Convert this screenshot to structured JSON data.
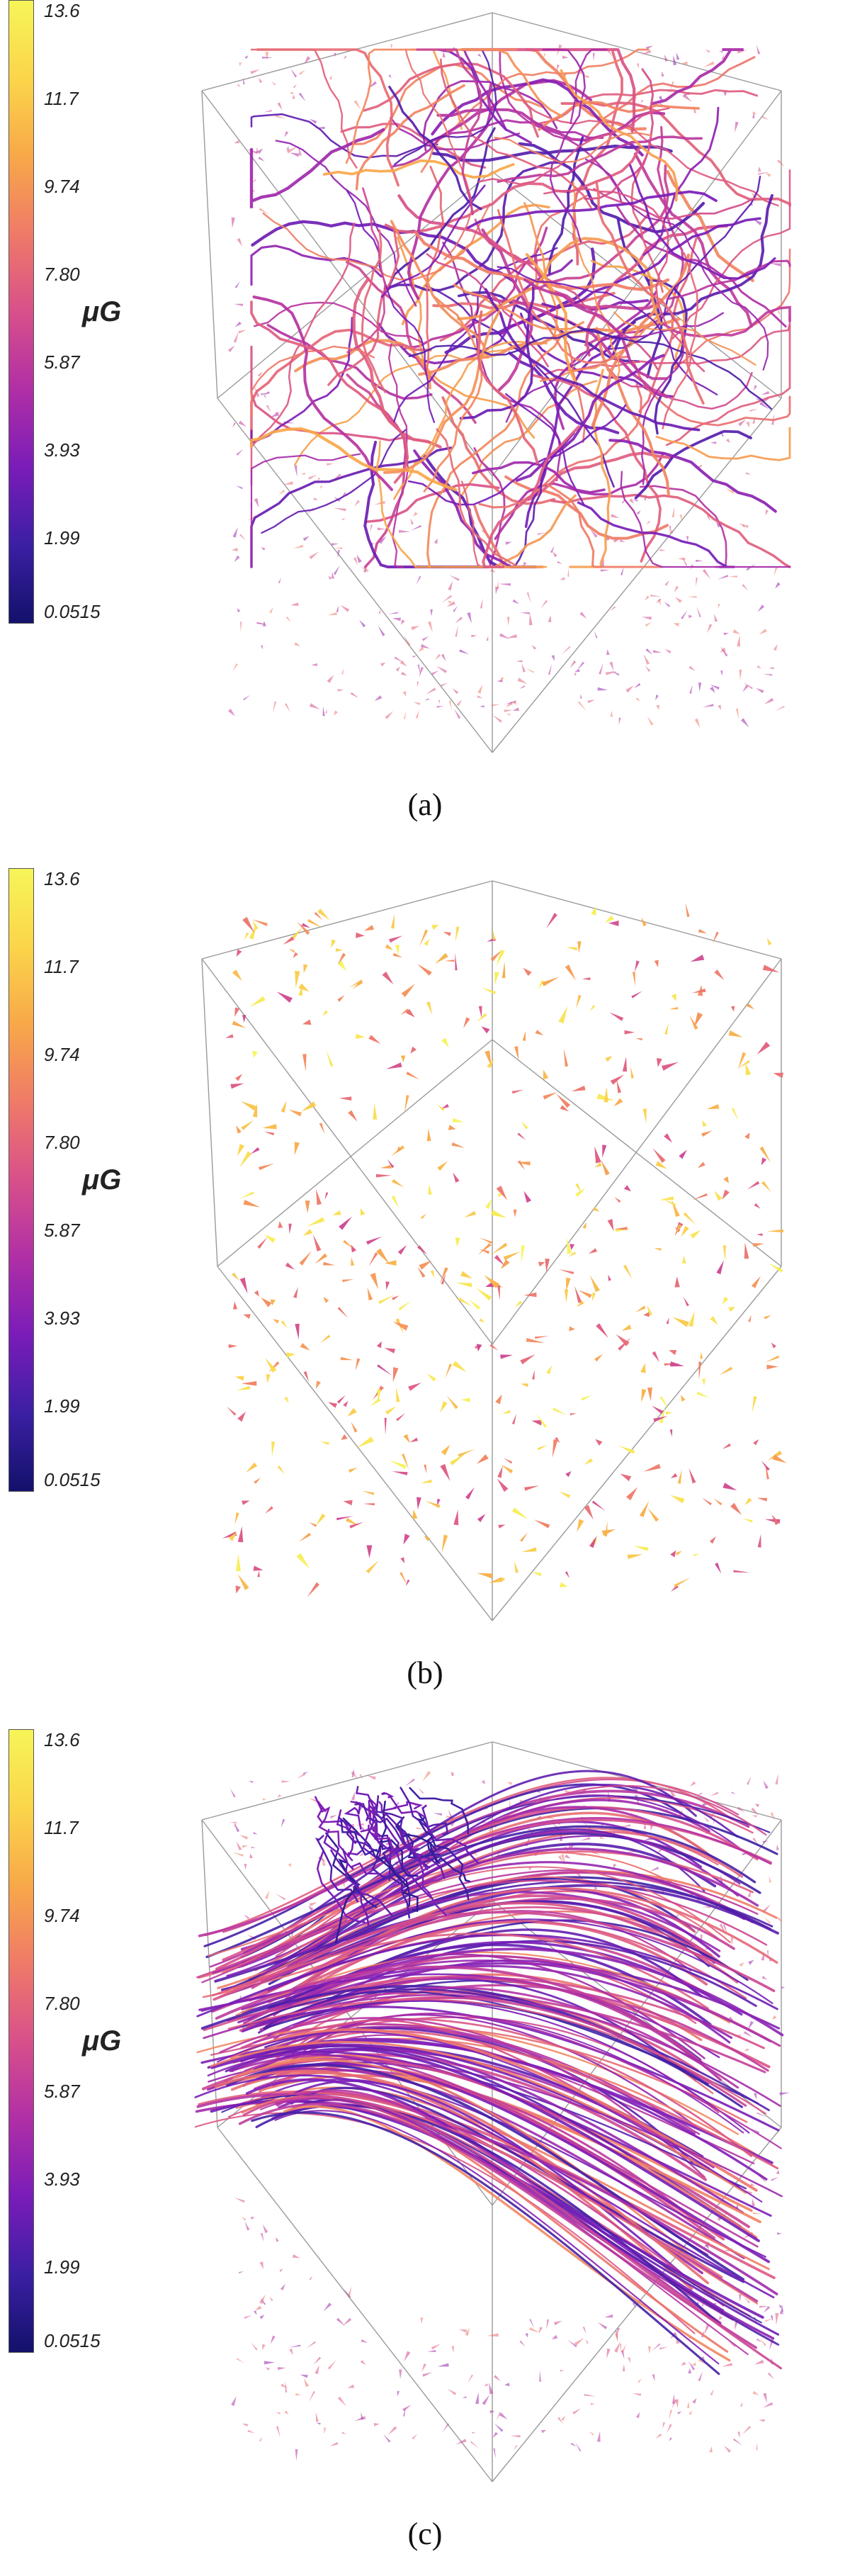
{
  "colorbar": {
    "unit": "μG",
    "ticks": [
      "13.6",
      "11.7",
      "9.74",
      "7.80",
      "5.87",
      "3.93",
      "1.99",
      "0.0515"
    ],
    "range": [
      0.0515,
      13.6
    ],
    "colormap": [
      "#13116b",
      "#3b1fa3",
      "#7a1cb8",
      "#b02fa6",
      "#d8508a",
      "#ef7a68",
      "#f8a849",
      "#fbd54a",
      "#f6f558"
    ]
  },
  "panels": [
    {
      "caption": "(a)",
      "style": "streamlines-and-vectors"
    },
    {
      "caption": "(b)",
      "style": "vectors-only"
    },
    {
      "caption": "(c)",
      "style": "streamlines-and-vectors"
    }
  ]
}
